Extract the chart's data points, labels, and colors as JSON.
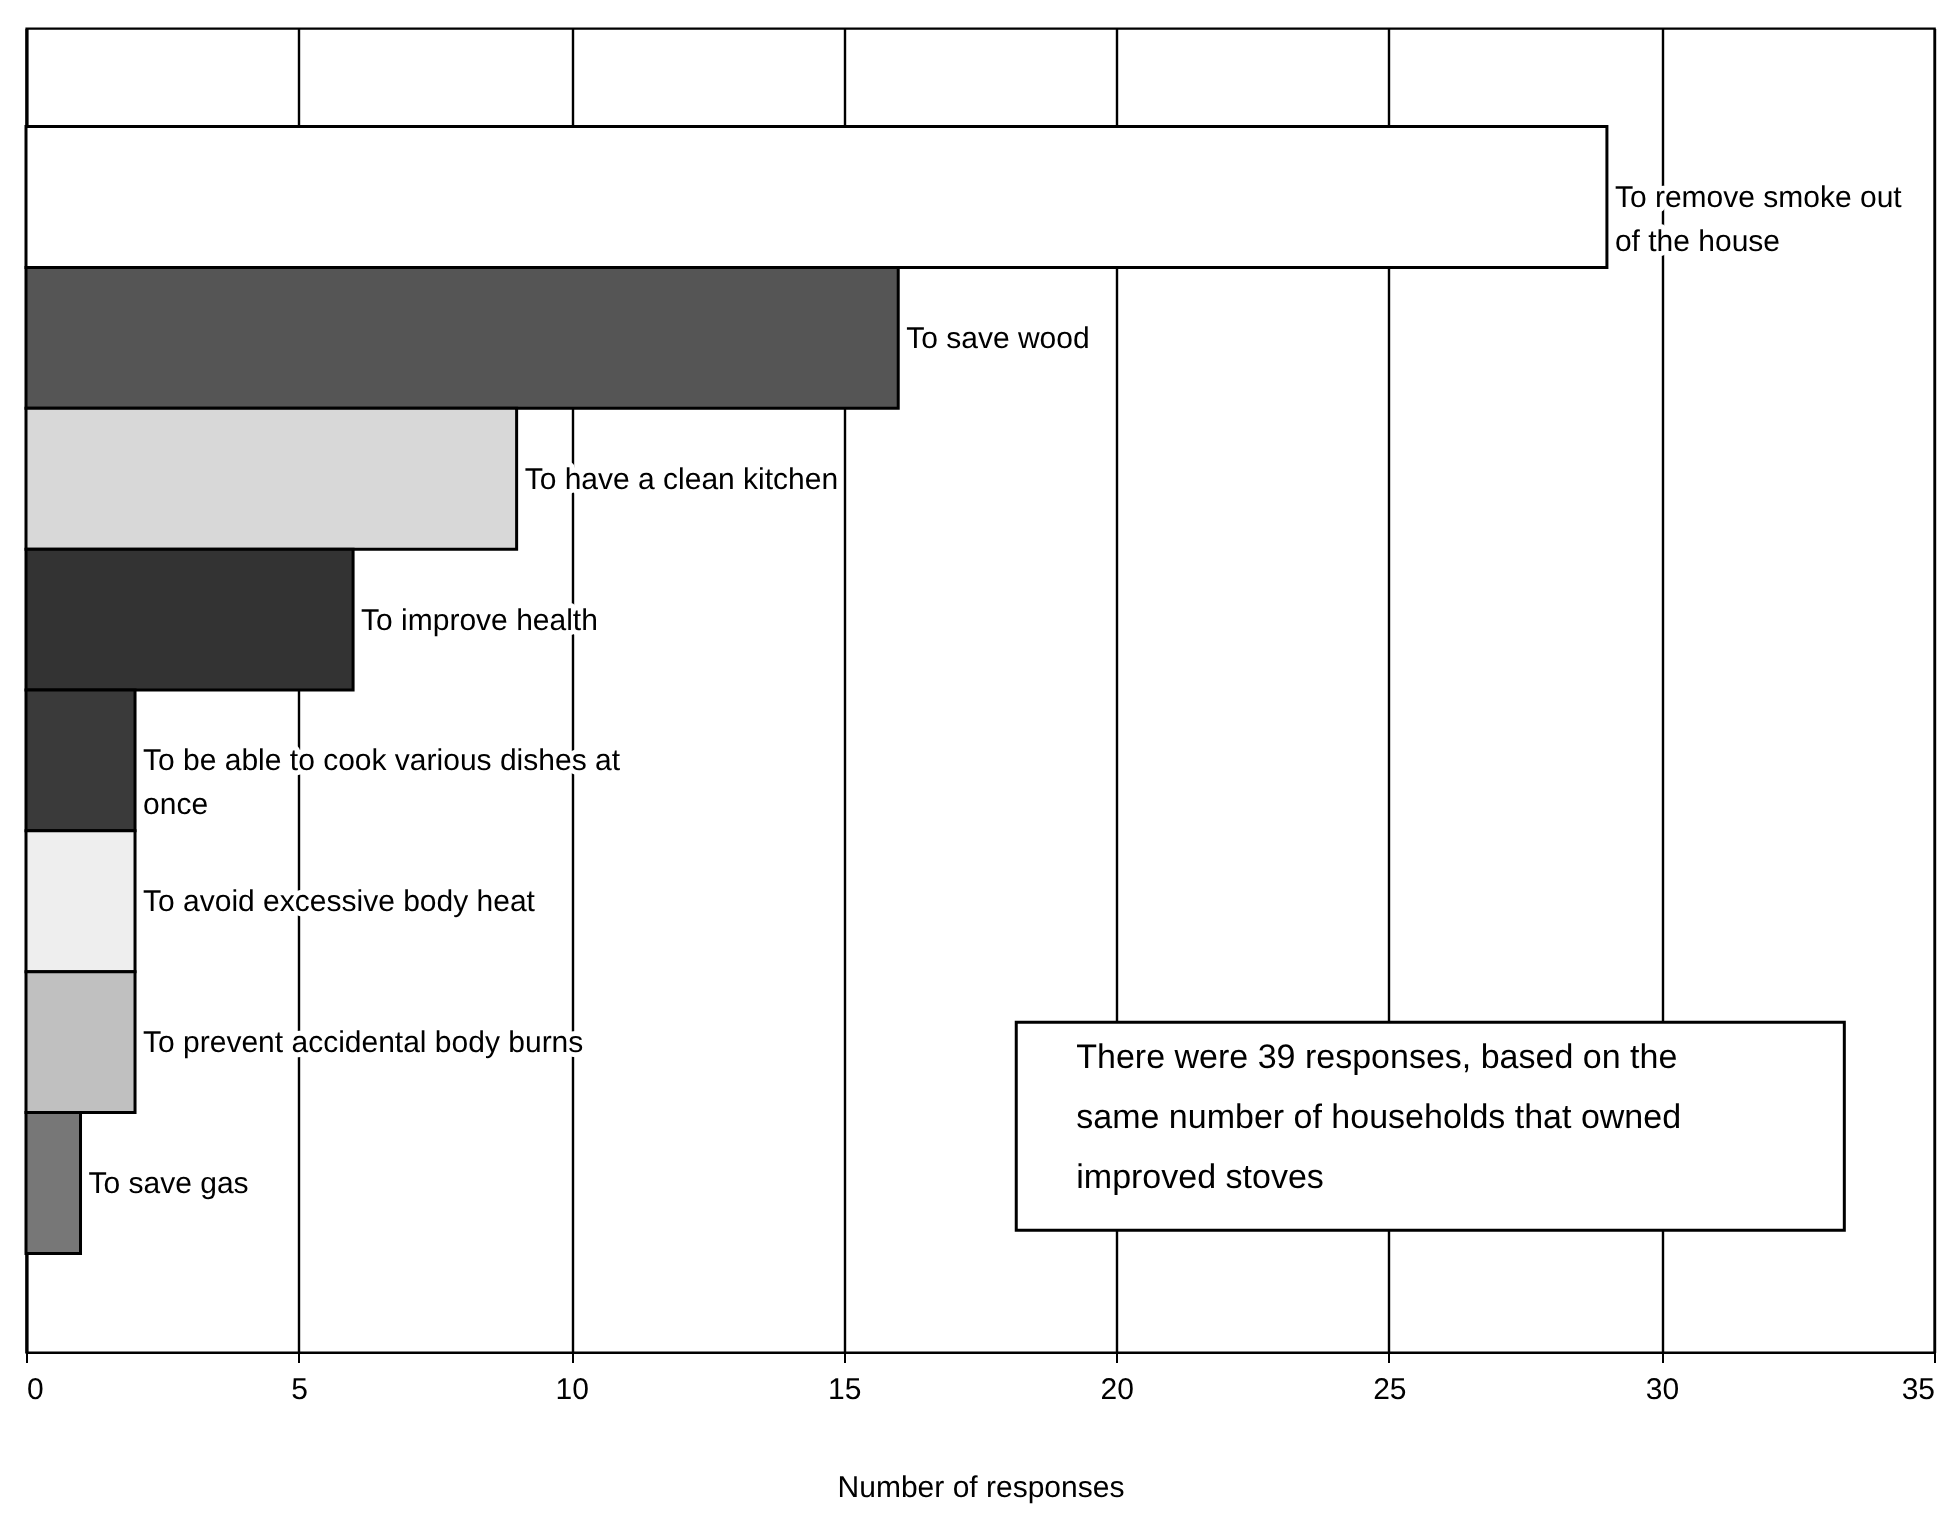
{
  "chart_data": {
    "type": "bar",
    "orientation": "horizontal",
    "xlabel": "Number of responses",
    "categories": [
      "To remove smoke out of the house",
      "To save wood",
      "To have a clean kitchen",
      "To improve health",
      "To be able to cook various dishes at once",
      "To avoid excessive body heat",
      "To prevent accidental body burns",
      "To save gas"
    ],
    "values": [
      29,
      16,
      9,
      6,
      2,
      2,
      2,
      1
    ],
    "colors": [
      "#ffffff",
      "#555555",
      "#d8d8d8",
      "#333333",
      "#3a3a3a",
      "#eeeeee",
      "#c0c0c0",
      "#777777"
    ],
    "xlim": [
      0,
      35
    ],
    "xticks": [
      0,
      5,
      10,
      15,
      20,
      25,
      30,
      35
    ],
    "grid": "x",
    "legend": false,
    "annotations": [
      "There were 39 responses, based on the same number of households that owned improved stoves"
    ]
  }
}
